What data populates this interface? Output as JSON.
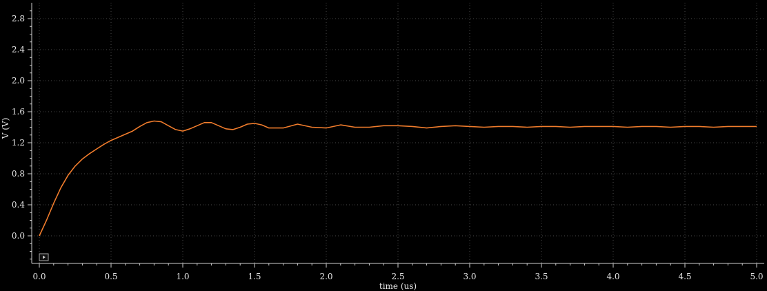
{
  "chart_data": {
    "type": "line",
    "xlabel": "time (us)",
    "ylabel": "V (V)",
    "xlim": [
      0.0,
      5.0
    ],
    "ylim": [
      -0.35,
      3.0
    ],
    "xticks": [
      "0.0",
      "0.5",
      "1.0",
      "1.5",
      "2.0",
      "2.5",
      "3.0",
      "3.5",
      "4.0",
      "4.5",
      "5.0"
    ],
    "yticks": [
      "0.0",
      "0.4",
      "0.8",
      "1.2",
      "1.6",
      "2.0",
      "2.4",
      "2.8"
    ],
    "grid": true,
    "series": [
      {
        "color": "#f07c2c",
        "x": [
          0.0,
          0.05,
          0.1,
          0.15,
          0.2,
          0.25,
          0.3,
          0.35,
          0.4,
          0.45,
          0.5,
          0.55,
          0.6,
          0.65,
          0.7,
          0.75,
          0.8,
          0.85,
          0.9,
          0.95,
          1.0,
          1.05,
          1.1,
          1.15,
          1.2,
          1.25,
          1.3,
          1.35,
          1.4,
          1.45,
          1.5,
          1.55,
          1.6,
          1.7,
          1.8,
          1.9,
          2.0,
          2.1,
          2.2,
          2.3,
          2.4,
          2.5,
          2.6,
          2.7,
          2.8,
          2.9,
          3.0,
          3.1,
          3.2,
          3.3,
          3.4,
          3.5,
          3.6,
          3.7,
          3.8,
          3.9,
          4.0,
          4.1,
          4.2,
          4.3,
          4.4,
          4.5,
          4.6,
          4.7,
          4.8,
          4.9,
          5.0
        ],
        "y": [
          0.0,
          0.2,
          0.42,
          0.62,
          0.78,
          0.9,
          0.99,
          1.06,
          1.12,
          1.18,
          1.23,
          1.27,
          1.31,
          1.35,
          1.41,
          1.46,
          1.48,
          1.47,
          1.42,
          1.37,
          1.35,
          1.38,
          1.42,
          1.46,
          1.46,
          1.42,
          1.38,
          1.37,
          1.4,
          1.44,
          1.45,
          1.43,
          1.39,
          1.39,
          1.44,
          1.4,
          1.39,
          1.43,
          1.4,
          1.4,
          1.42,
          1.42,
          1.41,
          1.39,
          1.41,
          1.42,
          1.41,
          1.4,
          1.41,
          1.41,
          1.4,
          1.41,
          1.41,
          1.4,
          1.41,
          1.41,
          1.41,
          1.4,
          1.41,
          1.41,
          1.4,
          1.41,
          1.41,
          1.4,
          1.41,
          1.41,
          1.41
        ]
      }
    ]
  },
  "colors": {
    "background": "#000000",
    "grid": "#4a4a4a",
    "axis": "#d0d0d0",
    "trace": "#f07c2c"
  },
  "icons": {
    "marker": "play-marker-icon"
  }
}
